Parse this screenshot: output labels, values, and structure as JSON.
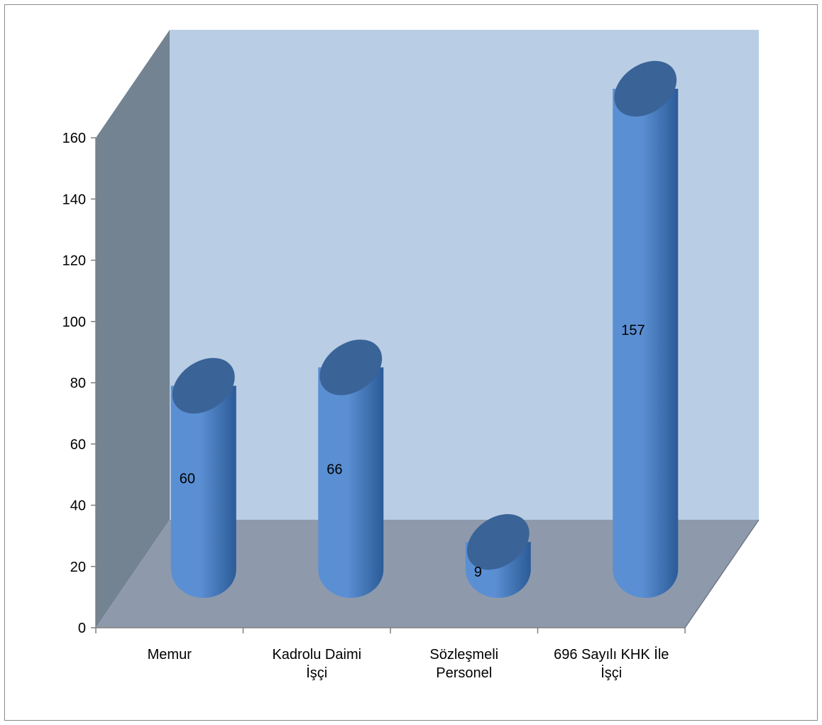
{
  "chart_data": {
    "type": "bar",
    "style": "3d-cylinder",
    "categories": [
      [
        "Memur"
      ],
      [
        "Kadrolu Daimi",
        "İşçi"
      ],
      [
        "Sözleşmeli",
        "Personel"
      ],
      [
        "696 Sayılı KHK İle",
        "İşçi"
      ]
    ],
    "values": [
      60,
      66,
      9,
      157
    ],
    "data_labels": [
      "60",
      "66",
      "9",
      "157"
    ],
    "ylim": [
      0,
      160
    ],
    "yticks": [
      0,
      20,
      40,
      60,
      80,
      100,
      120,
      140,
      160
    ],
    "grid": false,
    "legend": "none",
    "title": "",
    "xlabel": "",
    "ylabel": ""
  },
  "colors": {
    "back_wall": "#b9cde4",
    "side_wall": "#748392",
    "floor": "#8e9aab",
    "bar_light": "#5b8fd3",
    "bar_dark": "#2b5b97",
    "bar_top": "#3a6398",
    "axis": "#7f7f7f"
  }
}
